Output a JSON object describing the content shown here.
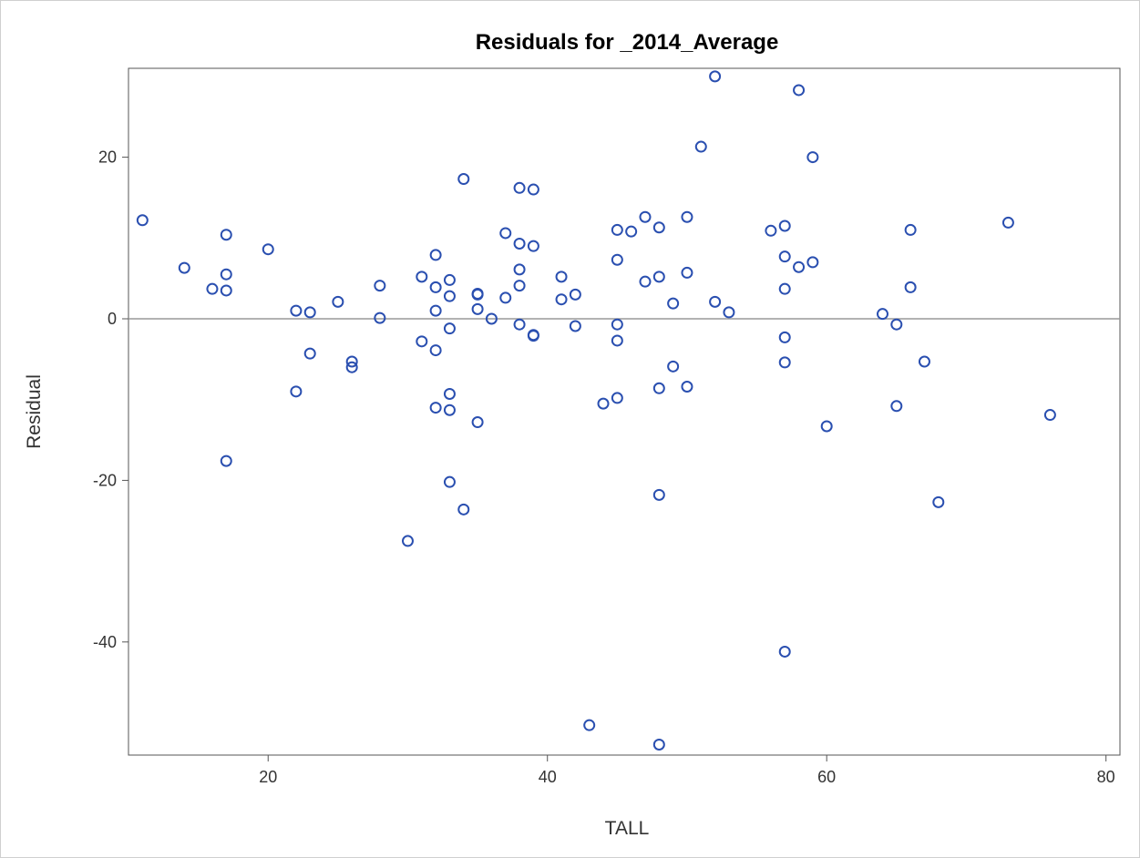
{
  "chart_data": {
    "type": "scatter",
    "title": "Residuals for _2014_Average",
    "xlabel": "TALL",
    "ylabel": "Residual",
    "xlim": [
      10,
      81
    ],
    "ylim": [
      -54,
      31
    ],
    "xticks": [
      20,
      40,
      60,
      80
    ],
    "xtick_labels": [
      "20",
      "40",
      "60",
      "80"
    ],
    "yticks": [
      20,
      0,
      -20,
      -40
    ],
    "ytick_labels": [
      "20",
      "0",
      "-20",
      "-40"
    ],
    "reference_line_y": 0,
    "grid": false,
    "colors": {
      "marker": "#2a4fb0",
      "reference_line": "#999999",
      "axis": "#555555"
    },
    "points": [
      {
        "x": 11,
        "y": 12.2
      },
      {
        "x": 14,
        "y": 6.3
      },
      {
        "x": 16,
        "y": 3.7
      },
      {
        "x": 17,
        "y": 10.4
      },
      {
        "x": 17,
        "y": 5.5
      },
      {
        "x": 17,
        "y": 3.5
      },
      {
        "x": 17,
        "y": -17.6
      },
      {
        "x": 20,
        "y": 8.6
      },
      {
        "x": 22,
        "y": 1.0
      },
      {
        "x": 22,
        "y": -9.0
      },
      {
        "x": 23,
        "y": 0.8
      },
      {
        "x": 23,
        "y": -4.3
      },
      {
        "x": 25,
        "y": 2.1
      },
      {
        "x": 26,
        "y": -5.3
      },
      {
        "x": 26,
        "y": -6.0
      },
      {
        "x": 28,
        "y": 4.1
      },
      {
        "x": 28,
        "y": 0.1
      },
      {
        "x": 30,
        "y": -27.5
      },
      {
        "x": 31,
        "y": 5.2
      },
      {
        "x": 31,
        "y": -2.8
      },
      {
        "x": 32,
        "y": 7.9
      },
      {
        "x": 32,
        "y": 3.9
      },
      {
        "x": 32,
        "y": 1.0
      },
      {
        "x": 32,
        "y": -3.9
      },
      {
        "x": 32,
        "y": -11.0
      },
      {
        "x": 33,
        "y": 4.8
      },
      {
        "x": 33,
        "y": 2.8
      },
      {
        "x": 33,
        "y": -1.2
      },
      {
        "x": 33,
        "y": -9.3
      },
      {
        "x": 33,
        "y": -11.3
      },
      {
        "x": 33,
        "y": -20.2
      },
      {
        "x": 34,
        "y": 17.3
      },
      {
        "x": 34,
        "y": -23.6
      },
      {
        "x": 35,
        "y": 3.0
      },
      {
        "x": 35,
        "y": 3.1
      },
      {
        "x": 35,
        "y": 1.2
      },
      {
        "x": 35,
        "y": -12.8
      },
      {
        "x": 36,
        "y": 0.0
      },
      {
        "x": 37,
        "y": 10.6
      },
      {
        "x": 37,
        "y": 2.6
      },
      {
        "x": 38,
        "y": 16.2
      },
      {
        "x": 38,
        "y": 9.3
      },
      {
        "x": 38,
        "y": 6.1
      },
      {
        "x": 38,
        "y": 4.1
      },
      {
        "x": 38,
        "y": -0.7
      },
      {
        "x": 39,
        "y": 16.0
      },
      {
        "x": 39,
        "y": 9.0
      },
      {
        "x": 39,
        "y": -2.0
      },
      {
        "x": 39,
        "y": -2.1
      },
      {
        "x": 41,
        "y": 5.2
      },
      {
        "x": 41,
        "y": 2.4
      },
      {
        "x": 42,
        "y": 3.0
      },
      {
        "x": 42,
        "y": -0.9
      },
      {
        "x": 43,
        "y": -50.3
      },
      {
        "x": 44,
        "y": -10.5
      },
      {
        "x": 45,
        "y": 11.0
      },
      {
        "x": 45,
        "y": 7.3
      },
      {
        "x": 45,
        "y": -0.7
      },
      {
        "x": 45,
        "y": -2.7
      },
      {
        "x": 45,
        "y": -9.8
      },
      {
        "x": 46,
        "y": 10.8
      },
      {
        "x": 47,
        "y": 12.6
      },
      {
        "x": 47,
        "y": 4.6
      },
      {
        "x": 48,
        "y": 11.3
      },
      {
        "x": 48,
        "y": 5.2
      },
      {
        "x": 48,
        "y": -8.6
      },
      {
        "x": 48,
        "y": -21.8
      },
      {
        "x": 48,
        "y": -52.7
      },
      {
        "x": 49,
        "y": 1.9
      },
      {
        "x": 49,
        "y": -5.9
      },
      {
        "x": 50,
        "y": 12.6
      },
      {
        "x": 50,
        "y": 5.7
      },
      {
        "x": 50,
        "y": -8.4
      },
      {
        "x": 51,
        "y": 21.3
      },
      {
        "x": 52,
        "y": 30.0
      },
      {
        "x": 52,
        "y": 2.1
      },
      {
        "x": 53,
        "y": 0.8
      },
      {
        "x": 56,
        "y": 10.9
      },
      {
        "x": 57,
        "y": 11.5
      },
      {
        "x": 57,
        "y": 7.7
      },
      {
        "x": 57,
        "y": 3.7
      },
      {
        "x": 57,
        "y": -2.3
      },
      {
        "x": 57,
        "y": -5.4
      },
      {
        "x": 57,
        "y": -41.2
      },
      {
        "x": 58,
        "y": 28.3
      },
      {
        "x": 58,
        "y": 6.4
      },
      {
        "x": 59,
        "y": 20.0
      },
      {
        "x": 59,
        "y": 7.0
      },
      {
        "x": 60,
        "y": -13.3
      },
      {
        "x": 64,
        "y": 0.6
      },
      {
        "x": 65,
        "y": -0.7
      },
      {
        "x": 65,
        "y": -10.8
      },
      {
        "x": 66,
        "y": 11.0
      },
      {
        "x": 66,
        "y": 3.9
      },
      {
        "x": 67,
        "y": -5.3
      },
      {
        "x": 68,
        "y": -22.7
      },
      {
        "x": 73,
        "y": 11.9
      },
      {
        "x": 76,
        "y": -11.9
      }
    ]
  }
}
